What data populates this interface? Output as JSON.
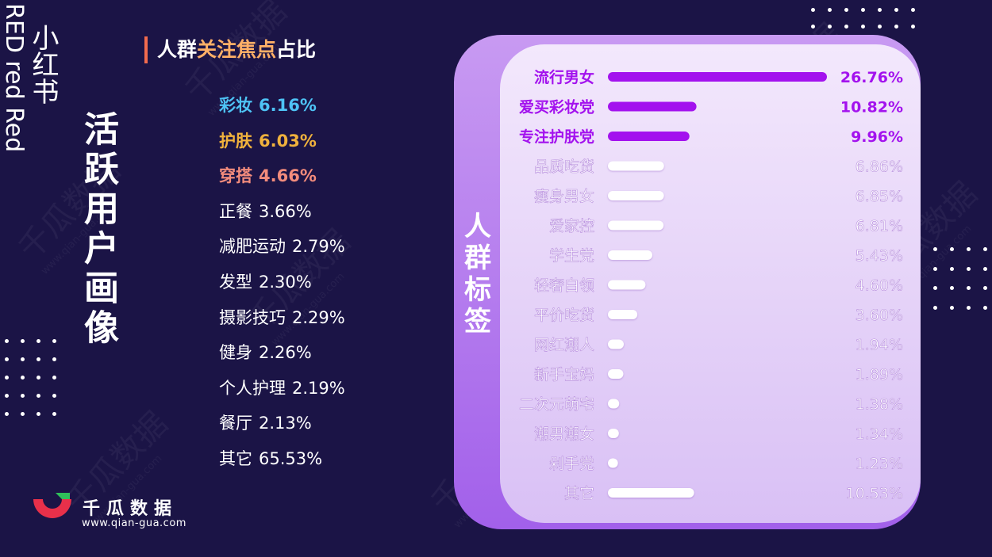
{
  "side": {
    "english": "RED red Red",
    "chinese": "小红书",
    "active_users_title": "活跃用户画像"
  },
  "focus": {
    "title_prefix": "人群",
    "title_highlight": "关注焦点",
    "title_suffix": "占比",
    "items": [
      {
        "label": "彩妆",
        "value": "6.16%",
        "color": "#4ec3f5"
      },
      {
        "label": "护肤",
        "value": "6.03%",
        "color": "#f0b23d"
      },
      {
        "label": "穿搭",
        "value": "4.66%",
        "color": "#f38c7c"
      },
      {
        "label": "正餐",
        "value": "3.66%",
        "color": "#ffffff"
      },
      {
        "label": "减肥运动",
        "value": "2.79%",
        "color": "#ffffff"
      },
      {
        "label": "发型",
        "value": "2.30%",
        "color": "#ffffff"
      },
      {
        "label": "摄影技巧",
        "value": "2.29%",
        "color": "#ffffff"
      },
      {
        "label": "健身",
        "value": "2.26%",
        "color": "#ffffff"
      },
      {
        "label": "个人护理",
        "value": "2.19%",
        "color": "#ffffff"
      },
      {
        "label": "餐厅",
        "value": "2.13%",
        "color": "#ffffff"
      },
      {
        "label": "其它",
        "value": "65.53%",
        "color": "#ffffff"
      }
    ]
  },
  "crowd_title": "人群标签",
  "chart_data": {
    "type": "bar",
    "orientation": "horizontal",
    "categories": [
      "流行男女",
      "爱买彩妆党",
      "专注护肤党",
      "品质吃货",
      "瘦身男女",
      "爱家控",
      "学生党",
      "轻奢白领",
      "平价吃货",
      "网红潮人",
      "新手宝妈",
      "二次元萌宅",
      "潮男潮女",
      "剁手党",
      "其它"
    ],
    "values": [
      26.76,
      10.82,
      9.96,
      6.86,
      6.85,
      6.81,
      5.43,
      4.6,
      3.6,
      1.94,
      1.89,
      1.38,
      1.34,
      1.23,
      10.53
    ],
    "value_labels": [
      "26.76%",
      "10.82%",
      "9.96%",
      "6.86%",
      "6.85%",
      "6.81%",
      "5.43%",
      "4.60%",
      "3.60%",
      "1.94%",
      "1.89%",
      "1.38%",
      "1.34%",
      "1.23%",
      "10.53%"
    ],
    "highlight_count": 3,
    "highlight_color": "#a312ee",
    "normal_color": "#ffffff"
  },
  "logo": {
    "name": "千瓜数据",
    "url": "www.qian-gua.com"
  },
  "watermark": {
    "text": "千瓜数据",
    "url": "www.qian-gua.com"
  }
}
